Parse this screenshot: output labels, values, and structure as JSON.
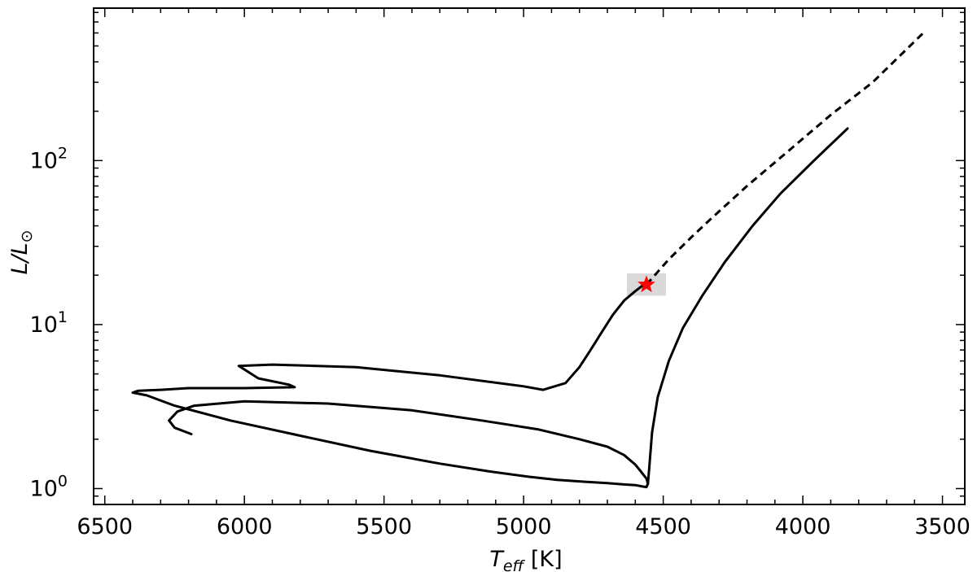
{
  "chart_data": {
    "type": "line",
    "title": "",
    "xlabel": {
      "main": "T",
      "sub": "eff",
      "unit": " [K]"
    },
    "ylabel": {
      "main": "L/L",
      "sub": "⊙"
    },
    "x_axis": {
      "reversed": true,
      "lim": [
        6540,
        3420
      ],
      "ticks": [
        6500,
        6000,
        5500,
        5000,
        4500,
        4000,
        3500
      ],
      "tick_labels": [
        "6500",
        "6000",
        "5500",
        "5000",
        "4500",
        "4000",
        "3500"
      ]
    },
    "y_axis": {
      "scale": "log",
      "lim": [
        0.8,
        850
      ],
      "ticks": [
        1,
        10,
        100
      ],
      "tick_labels": [
        {
          "base": "10",
          "exp": "0"
        },
        {
          "base": "10",
          "exp": "1"
        },
        {
          "base": "10",
          "exp": "2"
        }
      ]
    },
    "grid": false,
    "legend": "none",
    "series": [
      {
        "style": "solid",
        "color": "#000000",
        "x": [
          6190,
          6250,
          6270,
          6240,
          6180,
          6000,
          5700,
          5400,
          5150,
          4950,
          4800,
          4700,
          4640,
          4600,
          4580,
          4560,
          4555,
          4560,
          4575,
          4600,
          4640,
          4700,
          4780,
          4880,
          4980,
          5120,
          5300,
          5550,
          5800,
          6050,
          6250,
          6350,
          6400,
          6380,
          6300,
          6200,
          6000,
          5820,
          5840,
          5950,
          6020,
          5900,
          5600,
          5300,
          5000,
          4930,
          4850,
          4800,
          4760,
          4720,
          4680,
          4640,
          4600,
          4570
        ],
        "y": [
          2.15,
          2.35,
          2.6,
          2.95,
          3.2,
          3.4,
          3.3,
          3.0,
          2.6,
          2.3,
          2.0,
          1.8,
          1.6,
          1.4,
          1.27,
          1.15,
          1.07,
          1.02,
          1.03,
          1.05,
          1.06,
          1.08,
          1.1,
          1.13,
          1.18,
          1.27,
          1.42,
          1.7,
          2.1,
          2.6,
          3.2,
          3.7,
          3.85,
          3.95,
          4.0,
          4.1,
          4.1,
          4.15,
          4.3,
          4.7,
          5.6,
          5.7,
          5.5,
          4.9,
          4.2,
          4.0,
          4.4,
          5.5,
          7.0,
          9.0,
          11.5,
          14.0,
          16.0,
          17.5
        ]
      },
      {
        "style": "solid",
        "color": "#000000",
        "x": [
          4555,
          4550,
          4540,
          4520,
          4480,
          4430,
          4360,
          4280,
          4180,
          4080,
          3960,
          3840
        ],
        "y": [
          1.07,
          1.35,
          2.2,
          3.6,
          6.0,
          9.5,
          15.0,
          24.0,
          40.0,
          63.0,
          100.0,
          157.0
        ]
      },
      {
        "style": "dashed",
        "color": "#000000",
        "x": [
          4560,
          4480,
          4400,
          4330,
          4200,
          4050,
          3900,
          3750,
          3560
        ],
        "y": [
          17.5,
          25.0,
          34.0,
          44.0,
          70.0,
          115.0,
          190.0,
          300.0,
          620.0
        ]
      }
    ],
    "highlight_box": {
      "x_range": [
        4630,
        4490
      ],
      "y_range": [
        15.0,
        20.5
      ],
      "color": "#d9d9d9"
    },
    "marker": {
      "x": 4560,
      "y": 17.5,
      "symbol": "star",
      "color": "#ff0000"
    }
  }
}
